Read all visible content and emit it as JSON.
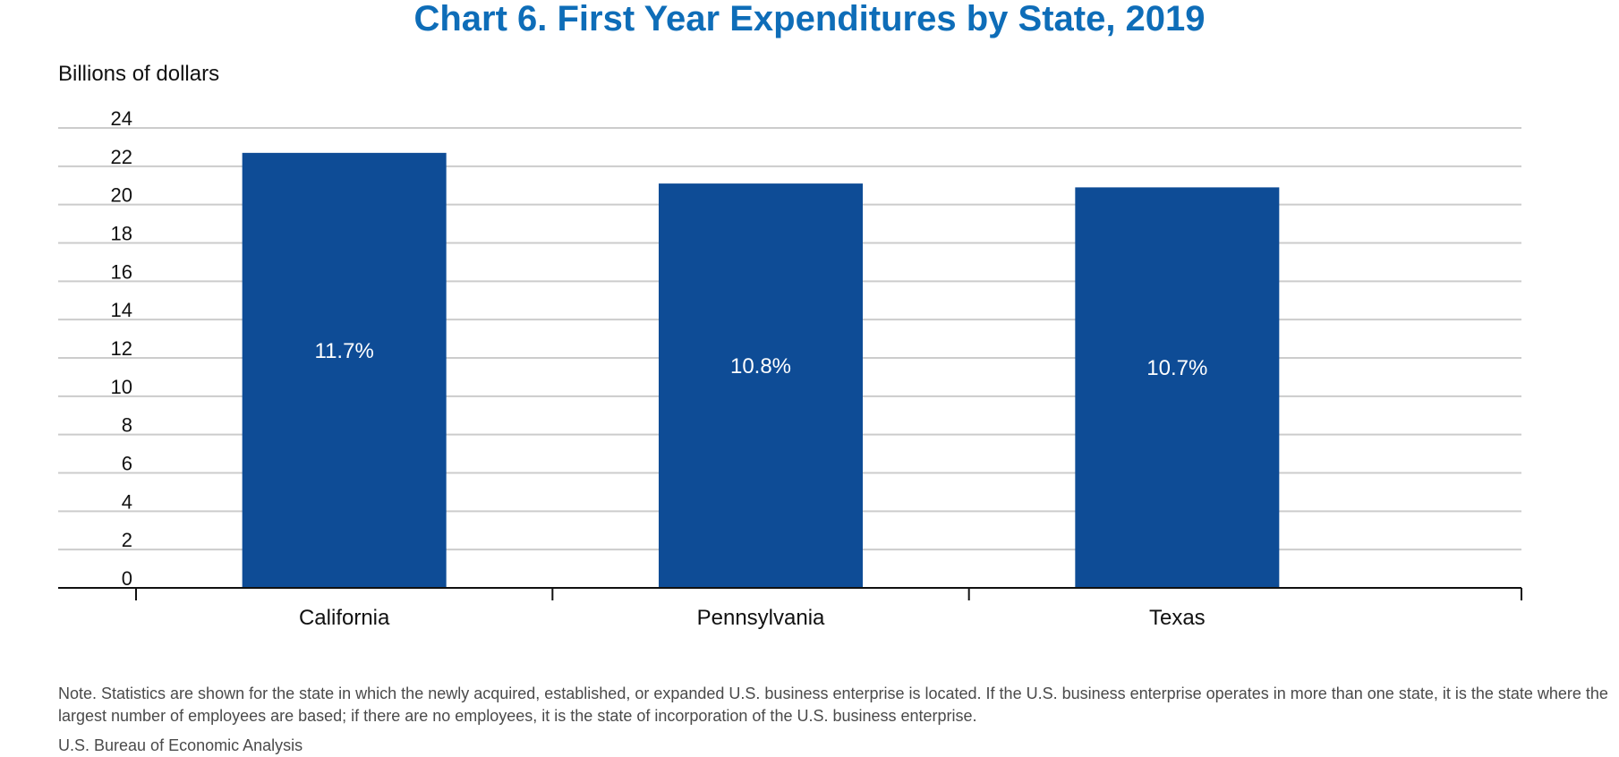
{
  "chart_data": {
    "type": "bar",
    "title": "Chart 6. First Year Expenditures by State, 2019",
    "ylabel": "Billions of dollars",
    "xlabel": "",
    "categories": [
      "California",
      "Pennsylvania",
      "Texas"
    ],
    "values": [
      22.7,
      21.1,
      20.9
    ],
    "data_labels": [
      "11.7%",
      "10.8%",
      "10.7%"
    ],
    "ylim": [
      0,
      24
    ],
    "yticks": [
      0,
      2,
      4,
      6,
      8,
      10,
      12,
      14,
      16,
      18,
      20,
      22,
      24
    ],
    "grid": true,
    "legend": "none",
    "bar_color": "#0e4c96",
    "label_color": "#ffffff",
    "grid_color": "#cccccc"
  },
  "note": "Note. Statistics are shown for the state in which the newly acquired, established, or expanded U.S. business enterprise is located. If the U.S. business enterprise operates in more than one state, it is the state where the largest number of employees are based; if there are no employees, it is the state of incorporation of the U.S. business enterprise.",
  "source": "U.S. Bureau of Economic Analysis"
}
